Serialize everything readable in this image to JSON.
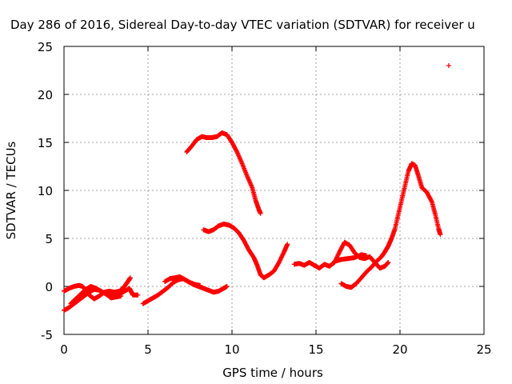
{
  "chart_data": {
    "type": "scatter",
    "title": "Day 286 of 2016, Sidereal Day-to-day VTEC variation (SDTVAR) for receiver u",
    "xlabel": "GPS time / hours",
    "ylabel": "SDTVAR / TECUs",
    "xlim": [
      0,
      25
    ],
    "ylim": [
      -5,
      25
    ],
    "x_ticks": [
      "0",
      "5",
      "10",
      "15",
      "20",
      "25"
    ],
    "y_ticks": [
      "-5",
      "0",
      "5",
      "10",
      "15",
      "20",
      "25"
    ],
    "grid": true,
    "marker": "+",
    "series_color": "#ff0000",
    "series": [
      {
        "points": [
          [
            0.0,
            -2.5
          ],
          [
            0.3,
            -2.2
          ],
          [
            0.6,
            -1.8
          ],
          [
            0.9,
            -1.4
          ],
          [
            1.2,
            -1.0
          ],
          [
            1.5,
            -0.6
          ],
          [
            1.8,
            -0.3
          ],
          [
            2.1,
            -0.4
          ],
          [
            2.4,
            -0.7
          ],
          [
            2.7,
            -0.9
          ],
          [
            3.0,
            -1.0
          ],
          [
            3.3,
            -0.8
          ],
          [
            3.6,
            -0.5
          ],
          [
            3.9,
            -0.2
          ],
          [
            4.1,
            -0.9
          ],
          [
            4.4,
            -0.9
          ]
        ]
      },
      {
        "points": [
          [
            0.0,
            -0.5
          ],
          [
            0.3,
            -0.2
          ],
          [
            0.6,
            0.0
          ],
          [
            0.9,
            0.1
          ],
          [
            1.1,
            0.0
          ],
          [
            1.3,
            -0.4
          ],
          [
            1.5,
            -0.9
          ],
          [
            1.8,
            -1.3
          ],
          [
            2.1,
            -1.0
          ],
          [
            2.4,
            -0.6
          ],
          [
            2.7,
            -0.5
          ],
          [
            3.0,
            -0.6
          ],
          [
            3.3,
            -0.5
          ],
          [
            3.6,
            0.0
          ],
          [
            3.8,
            0.5
          ],
          [
            3.95,
            0.9
          ]
        ]
      },
      {
        "points": [
          [
            0.4,
            -1.8
          ],
          [
            0.7,
            -1.3
          ],
          [
            1.0,
            -0.8
          ],
          [
            1.3,
            -0.3
          ],
          [
            1.6,
            0.0
          ],
          [
            1.9,
            -0.2
          ],
          [
            2.2,
            -0.5
          ],
          [
            2.5,
            -0.8
          ],
          [
            2.8,
            -1.2
          ],
          [
            3.1,
            -1.1
          ],
          [
            3.4,
            -1.0
          ]
        ]
      },
      {
        "points": [
          [
            4.7,
            -1.8
          ],
          [
            5.0,
            -1.5
          ],
          [
            5.3,
            -1.2
          ],
          [
            5.6,
            -0.9
          ],
          [
            5.9,
            -0.5
          ],
          [
            6.2,
            -0.1
          ],
          [
            6.5,
            0.4
          ],
          [
            6.8,
            0.7
          ],
          [
            7.1,
            0.8
          ],
          [
            7.4,
            0.5
          ],
          [
            7.7,
            0.2
          ],
          [
            8.0,
            0.0
          ],
          [
            8.3,
            -0.2
          ],
          [
            8.6,
            -0.4
          ],
          [
            8.9,
            -0.6
          ],
          [
            9.2,
            -0.5
          ],
          [
            9.5,
            -0.2
          ],
          [
            9.7,
            0.0
          ]
        ]
      },
      {
        "points": [
          [
            6.0,
            0.5
          ],
          [
            6.3,
            0.8
          ],
          [
            6.6,
            0.9
          ],
          [
            6.9,
            1.0
          ],
          [
            7.2,
            0.7
          ],
          [
            7.5,
            0.4
          ],
          [
            7.8,
            0.2
          ],
          [
            8.1,
            0.1
          ]
        ]
      },
      {
        "points": [
          [
            7.3,
            14.0
          ],
          [
            7.6,
            14.6
          ],
          [
            7.9,
            15.3
          ],
          [
            8.2,
            15.6
          ],
          [
            8.5,
            15.5
          ],
          [
            8.8,
            15.5
          ],
          [
            9.1,
            15.6
          ],
          [
            9.4,
            16.0
          ],
          [
            9.7,
            15.8
          ],
          [
            10.0,
            15.0
          ],
          [
            10.3,
            14.0
          ],
          [
            10.6,
            12.8
          ],
          [
            10.9,
            11.5
          ],
          [
            11.2,
            10.3
          ],
          [
            11.4,
            9.0
          ],
          [
            11.6,
            8.0
          ],
          [
            11.7,
            7.6
          ]
        ]
      },
      {
        "points": [
          [
            8.3,
            5.9
          ],
          [
            8.6,
            5.7
          ],
          [
            8.9,
            5.9
          ],
          [
            9.2,
            6.3
          ],
          [
            9.5,
            6.5
          ],
          [
            9.8,
            6.4
          ],
          [
            10.1,
            6.1
          ],
          [
            10.4,
            5.6
          ],
          [
            10.7,
            4.8
          ],
          [
            11.0,
            3.8
          ],
          [
            11.3,
            3.0
          ],
          [
            11.5,
            2.2
          ],
          [
            11.7,
            1.2
          ],
          [
            11.9,
            0.9
          ],
          [
            12.2,
            1.2
          ],
          [
            12.5,
            1.6
          ],
          [
            12.8,
            2.5
          ],
          [
            13.1,
            3.6
          ],
          [
            13.3,
            4.4
          ]
        ]
      },
      {
        "points": [
          [
            13.7,
            2.3
          ],
          [
            14.0,
            2.4
          ],
          [
            14.3,
            2.2
          ],
          [
            14.6,
            2.5
          ],
          [
            14.9,
            2.2
          ],
          [
            15.2,
            1.9
          ],
          [
            15.5,
            2.3
          ],
          [
            15.8,
            2.1
          ],
          [
            16.1,
            2.5
          ],
          [
            16.4,
            3.6
          ],
          [
            16.7,
            4.6
          ],
          [
            17.0,
            4.3
          ],
          [
            17.3,
            3.5
          ],
          [
            17.6,
            3.0
          ],
          [
            17.9,
            2.9
          ],
          [
            18.2,
            3.1
          ],
          [
            18.5,
            2.5
          ],
          [
            18.8,
            1.9
          ],
          [
            19.1,
            2.1
          ],
          [
            19.3,
            2.5
          ]
        ]
      },
      {
        "points": [
          [
            16.1,
            2.6
          ],
          [
            16.5,
            2.8
          ],
          [
            16.9,
            2.9
          ],
          [
            17.3,
            3.0
          ],
          [
            17.7,
            3.3
          ],
          [
            18.0,
            3.2
          ]
        ]
      },
      {
        "points": [
          [
            16.5,
            0.3
          ],
          [
            16.8,
            0.0
          ],
          [
            17.1,
            -0.1
          ],
          [
            17.4,
            0.3
          ],
          [
            17.7,
            0.9
          ],
          [
            18.0,
            1.5
          ],
          [
            18.3,
            2.0
          ],
          [
            18.6,
            2.6
          ],
          [
            18.9,
            3.1
          ],
          [
            19.1,
            3.6
          ],
          [
            19.3,
            4.2
          ],
          [
            19.5,
            5.0
          ],
          [
            19.7,
            6.0
          ],
          [
            19.9,
            7.5
          ],
          [
            20.1,
            9.0
          ],
          [
            20.3,
            10.5
          ],
          [
            20.5,
            12.0
          ],
          [
            20.7,
            12.8
          ],
          [
            20.9,
            12.6
          ],
          [
            21.1,
            11.5
          ],
          [
            21.3,
            10.3
          ],
          [
            21.6,
            9.8
          ],
          [
            21.9,
            8.8
          ],
          [
            22.1,
            7.5
          ],
          [
            22.3,
            6.0
          ],
          [
            22.4,
            5.4
          ]
        ]
      },
      {
        "points": [
          [
            22.9,
            23.0
          ]
        ]
      }
    ]
  }
}
